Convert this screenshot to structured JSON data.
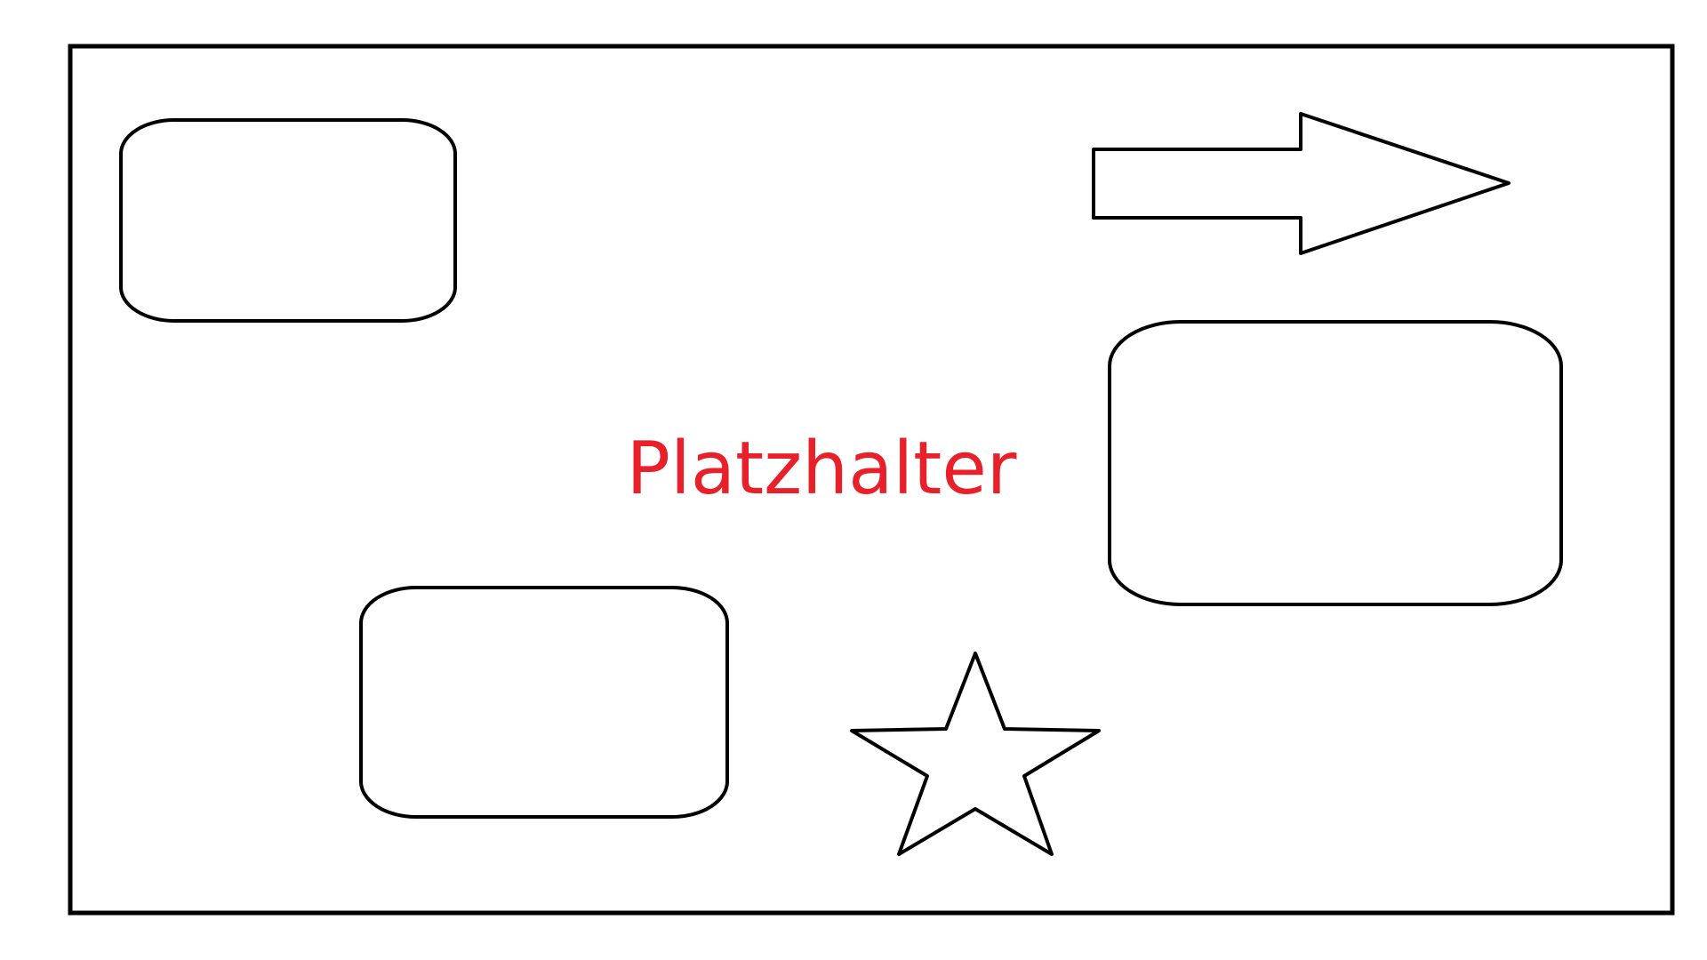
{
  "diagram": {
    "center_text": "Platzhalter",
    "text_color": "#e8202a",
    "line_color": "#000000",
    "background_color": "#ffffff",
    "shapes": [
      {
        "kind": "rounded-rectangle",
        "name": "top-left"
      },
      {
        "kind": "block-arrow",
        "name": "top-right",
        "direction": "right"
      },
      {
        "kind": "rounded-rectangle",
        "name": "right"
      },
      {
        "kind": "rounded-rectangle",
        "name": "bottom-left"
      },
      {
        "kind": "five-point-star",
        "name": "bottom-center"
      }
    ]
  }
}
